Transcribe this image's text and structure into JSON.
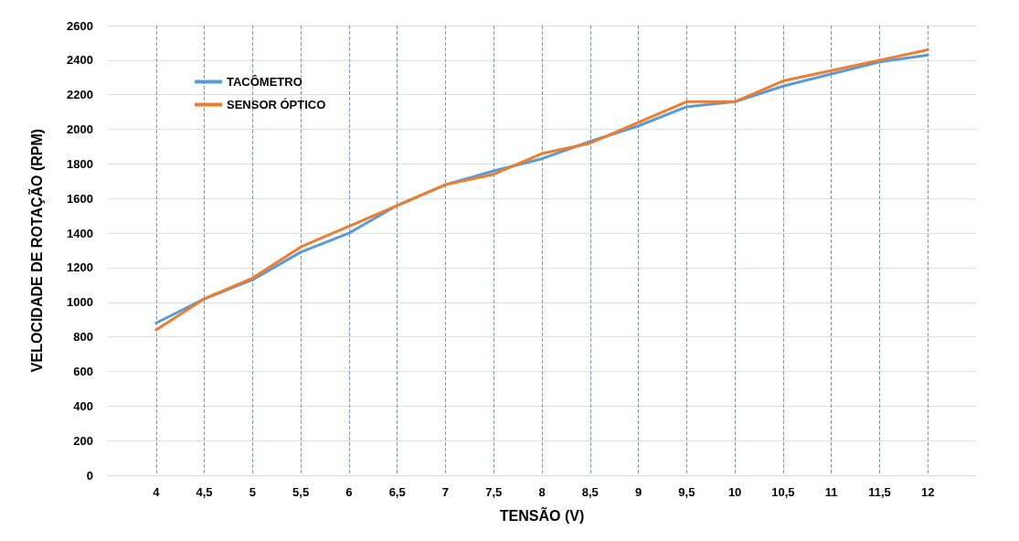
{
  "chart_data": {
    "type": "line",
    "xlabel": "TENSÃO (V)",
    "ylabel": "VELOCIDADE DE ROTAÇÃO (RPM)",
    "x": [
      4,
      4.5,
      5,
      5.5,
      6,
      6.5,
      7,
      7.5,
      8,
      8.5,
      9,
      9.5,
      10,
      10.5,
      11,
      11.5,
      12
    ],
    "series": [
      {
        "name": "TACÔMETRO",
        "color": "#5b9bd5",
        "values": [
          880,
          1020,
          1130,
          1290,
          1400,
          1560,
          1680,
          1760,
          1830,
          1930,
          2020,
          2130,
          2160,
          2250,
          2320,
          2390,
          2430
        ]
      },
      {
        "name": "SENSOR ÓPTICO",
        "color": "#ed7d31",
        "values": [
          840,
          1020,
          1140,
          1320,
          1440,
          1560,
          1680,
          1740,
          1860,
          1920,
          2040,
          2160,
          2160,
          2280,
          2340,
          2400,
          2460
        ]
      }
    ],
    "xlim": [
      3.5,
      12.5
    ],
    "xticks": [
      4,
      {
        "value": 4.5,
        "label": "4,5"
      },
      5,
      {
        "value": 5.5,
        "label": "5,5"
      },
      6,
      {
        "value": 6.5,
        "label": "6,5"
      },
      7,
      {
        "value": 7.5,
        "label": "7,5"
      },
      8,
      {
        "value": 8.5,
        "label": "8,5"
      },
      9,
      {
        "value": 9.5,
        "label": "9,5"
      },
      10,
      {
        "value": 10.5,
        "label": "10,5"
      },
      11,
      {
        "value": 11.5,
        "label": "11,5"
      },
      12
    ],
    "ylim": [
      0,
      2600
    ],
    "yticks": [
      0,
      200,
      400,
      600,
      800,
      1000,
      1200,
      1400,
      1600,
      1800,
      2000,
      2200,
      2400,
      2600
    ],
    "grid": true,
    "legend": "top left",
    "marker": "none",
    "line_style": "solid"
  }
}
